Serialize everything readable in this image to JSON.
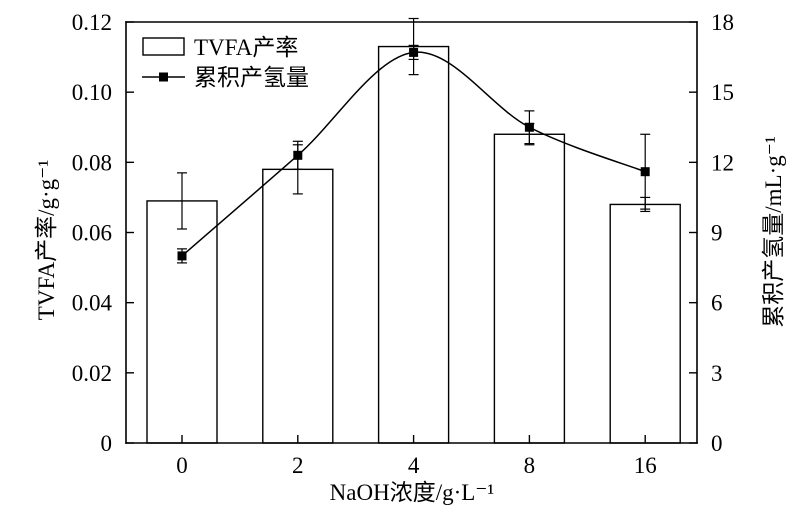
{
  "chart_data": {
    "type": "bar",
    "xlabel": "NaOH浓度/g·L⁻¹",
    "ylabel": "TVFA产率/g·g⁻¹",
    "y2label": "累积产氢量/mL·g⁻¹",
    "categories": [
      "0",
      "2",
      "4",
      "8",
      "16"
    ],
    "ylim": [
      0,
      0.12
    ],
    "y2lim": [
      0,
      18
    ],
    "yticks": [
      "0",
      "0.02",
      "0.04",
      "0.06",
      "0.08",
      "0.10",
      "0.12"
    ],
    "y2ticks": [
      "0",
      "3",
      "6",
      "9",
      "12",
      "15",
      "18"
    ],
    "grid": false,
    "legend": {
      "position": "top-left"
    },
    "series": [
      {
        "name": "TVFA产率",
        "type": "bar",
        "axis": "left",
        "fill": "#ffffff",
        "color": "#000000",
        "values": [
          0.069,
          0.078,
          0.113,
          0.088,
          0.068
        ],
        "errors": [
          0.008,
          0.007,
          0.008,
          0.003,
          0.002
        ]
      },
      {
        "name": "累积产氢量",
        "type": "line",
        "axis": "right",
        "color": "#000000",
        "marker": "square",
        "smooth": true,
        "values": [
          8.0,
          12.3,
          16.7,
          13.5,
          11.6
        ],
        "errors": [
          0.3,
          0.6,
          0.3,
          0.7,
          1.6
        ]
      }
    ]
  }
}
